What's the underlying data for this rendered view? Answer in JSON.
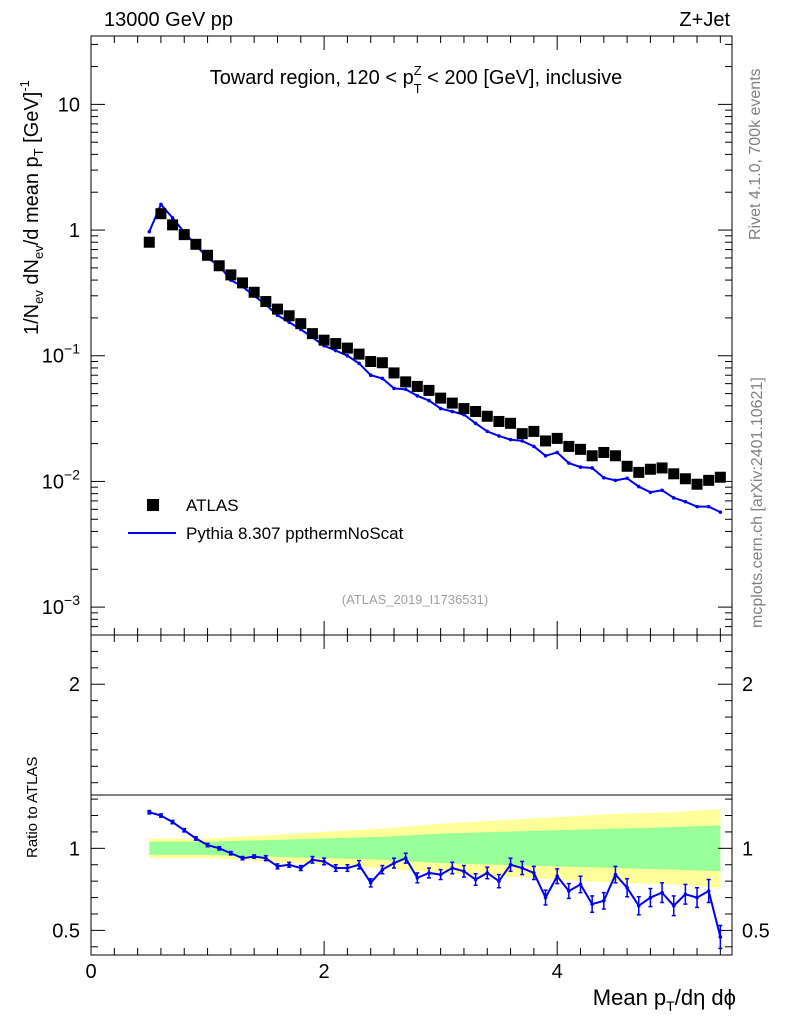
{
  "header": {
    "left": "13000 GeV pp",
    "right": "Z+Jet"
  },
  "side_labels": {
    "rivet": "Rivet 4.1.0,  700k events",
    "mcplots": "mcplots.cern.ch [arXiv:2401.10621]"
  },
  "colors": {
    "data": "#000000",
    "mc": "#0000ee",
    "band_inner": "#99ff99",
    "band_outer": "#ffff99"
  },
  "chart_data": [
    {
      "type": "scatter",
      "panel": "main",
      "title": "Toward region, 120 < p_T^Z < 200 [GeV], inclusive",
      "title_parts": {
        "prefix": "Toward region, 120 < p",
        "sub": "T",
        "sup": "Z",
        "suffix": " < 200 [GeV], inclusive"
      },
      "ylabel": "1/N_ev dN_ev/d mean p_T [GeV]^-1",
      "ylabel_parts": {
        "a": "1/N",
        "a_sub": "ev",
        "b": " dN",
        "b_sub": "ev",
        "c": "/d mean p",
        "c_sub": "T",
        "d": " [GeV]",
        "d_sup": "-1"
      },
      "yscale": "log",
      "ylim": [
        0.0006,
        35
      ],
      "xlim": [
        0,
        5.5
      ],
      "ytick_labels": [
        {
          "value": 10,
          "base": "10",
          "exp": ""
        },
        {
          "value": 1,
          "base": "1",
          "exp": ""
        },
        {
          "value": 0.1,
          "base": "10",
          "exp": "−1"
        },
        {
          "value": 0.01,
          "base": "10",
          "exp": "−2"
        },
        {
          "value": 0.001,
          "base": "10",
          "exp": "−3"
        }
      ],
      "legend": {
        "position": "lower-left",
        "entries": [
          "ATLAS",
          "Pythia 8.307 ppthermNoScat"
        ]
      },
      "annotation": "(ATLAS_2019_I1736531)",
      "x": [
        0.5,
        0.6,
        0.7,
        0.8,
        0.9,
        1.0,
        1.1,
        1.2,
        1.3,
        1.4,
        1.5,
        1.6,
        1.7,
        1.8,
        1.9,
        2.0,
        2.1,
        2.2,
        2.3,
        2.4,
        2.5,
        2.6,
        2.7,
        2.8,
        2.9,
        3.0,
        3.1,
        3.2,
        3.3,
        3.4,
        3.5,
        3.6,
        3.7,
        3.8,
        3.9,
        4.0,
        4.1,
        4.2,
        4.3,
        4.4,
        4.5,
        4.6,
        4.7,
        4.8,
        4.9,
        5.0,
        5.1,
        5.2,
        5.3,
        5.4
      ],
      "series": [
        {
          "name": "ATLAS",
          "marker": "square",
          "values": [
            0.8,
            1.35,
            1.1,
            0.92,
            0.77,
            0.63,
            0.52,
            0.44,
            0.38,
            0.32,
            0.27,
            0.235,
            0.208,
            0.18,
            0.15,
            0.133,
            0.125,
            0.115,
            0.103,
            0.09,
            0.088,
            0.073,
            0.062,
            0.057,
            0.053,
            0.046,
            0.042,
            0.038,
            0.036,
            0.033,
            0.03,
            0.029,
            0.024,
            0.025,
            0.021,
            0.022,
            0.019,
            0.018,
            0.016,
            0.017,
            0.016,
            0.0132,
            0.0118,
            0.0125,
            0.0128,
            0.0115,
            0.0105,
            0.0095,
            0.0102,
            0.0108
          ]
        },
        {
          "name": "Pythia 8.307 ppthermNoScat",
          "line": true,
          "values": [
            0.97,
            1.6,
            1.25,
            0.96,
            0.76,
            0.6,
            0.52,
            0.4,
            0.355,
            0.3,
            0.255,
            0.21,
            0.185,
            0.162,
            0.14,
            0.12,
            0.11,
            0.1,
            0.087,
            0.07,
            0.066,
            0.055,
            0.054,
            0.048,
            0.044,
            0.038,
            0.036,
            0.034,
            0.029,
            0.025,
            0.023,
            0.0215,
            0.021,
            0.019,
            0.016,
            0.017,
            0.014,
            0.013,
            0.0128,
            0.0107,
            0.0102,
            0.0106,
            0.0091,
            0.0082,
            0.0085,
            0.0074,
            0.0069,
            0.0063,
            0.0063,
            0.0057
          ]
        }
      ]
    },
    {
      "type": "line",
      "panel": "ratio",
      "ylabel": "Ratio to ATLAS",
      "xlabel": "Mean p_T/dη dϕ",
      "xlabel_parts": {
        "a": "Mean p",
        "a_sub": "T",
        "b": "/dη dϕ"
      },
      "ylim": [
        0.35,
        2.3
      ],
      "xlim": [
        0,
        5.5
      ],
      "xtick_labels": [
        "0",
        "2",
        "4"
      ],
      "ytick_labels_left": [
        "0.5",
        "1",
        "2"
      ],
      "ytick_labels_right": [
        "0.5",
        "1",
        "2"
      ],
      "x": [
        0.5,
        0.6,
        0.7,
        0.8,
        0.9,
        1.0,
        1.1,
        1.2,
        1.3,
        1.4,
        1.5,
        1.6,
        1.7,
        1.8,
        1.9,
        2.0,
        2.1,
        2.2,
        2.3,
        2.4,
        2.5,
        2.6,
        2.7,
        2.8,
        2.9,
        3.0,
        3.1,
        3.2,
        3.3,
        3.4,
        3.5,
        3.6,
        3.7,
        3.8,
        3.9,
        4.0,
        4.1,
        4.2,
        4.3,
        4.4,
        4.5,
        4.6,
        4.7,
        4.8,
        4.9,
        5.0,
        5.1,
        5.2,
        5.3,
        5.4
      ],
      "series": [
        {
          "name": "Pythia 8.307 ppthermNoScat",
          "values": [
            1.22,
            1.2,
            1.16,
            1.11,
            1.06,
            1.02,
            1.0,
            0.97,
            0.94,
            0.95,
            0.94,
            0.89,
            0.9,
            0.88,
            0.93,
            0.92,
            0.88,
            0.88,
            0.9,
            0.79,
            0.87,
            0.91,
            0.94,
            0.82,
            0.85,
            0.84,
            0.88,
            0.86,
            0.81,
            0.85,
            0.8,
            0.9,
            0.88,
            0.85,
            0.7,
            0.83,
            0.74,
            0.78,
            0.66,
            0.68,
            0.84,
            0.76,
            0.65,
            0.7,
            0.73,
            0.65,
            0.72,
            0.7,
            0.74,
            0.46
          ],
          "errors": [
            0.01,
            0.01,
            0.01,
            0.01,
            0.01,
            0.01,
            0.01,
            0.01,
            0.01,
            0.01,
            0.015,
            0.015,
            0.015,
            0.015,
            0.02,
            0.02,
            0.02,
            0.02,
            0.025,
            0.025,
            0.025,
            0.03,
            0.03,
            0.03,
            0.03,
            0.03,
            0.035,
            0.035,
            0.035,
            0.035,
            0.04,
            0.04,
            0.04,
            0.04,
            0.045,
            0.045,
            0.045,
            0.05,
            0.05,
            0.05,
            0.05,
            0.055,
            0.055,
            0.055,
            0.06,
            0.06,
            0.06,
            0.06,
            0.07,
            0.07
          ]
        }
      ],
      "band_x": [
        0.5,
        1.0,
        1.5,
        2.0,
        2.5,
        3.0,
        3.5,
        4.0,
        4.5,
        5.0,
        5.4
      ],
      "band_inner": [
        0.04,
        0.04,
        0.05,
        0.06,
        0.07,
        0.09,
        0.1,
        0.11,
        0.12,
        0.13,
        0.14
      ],
      "band_outer": [
        0.06,
        0.06,
        0.08,
        0.1,
        0.12,
        0.15,
        0.17,
        0.19,
        0.21,
        0.22,
        0.24
      ]
    }
  ]
}
